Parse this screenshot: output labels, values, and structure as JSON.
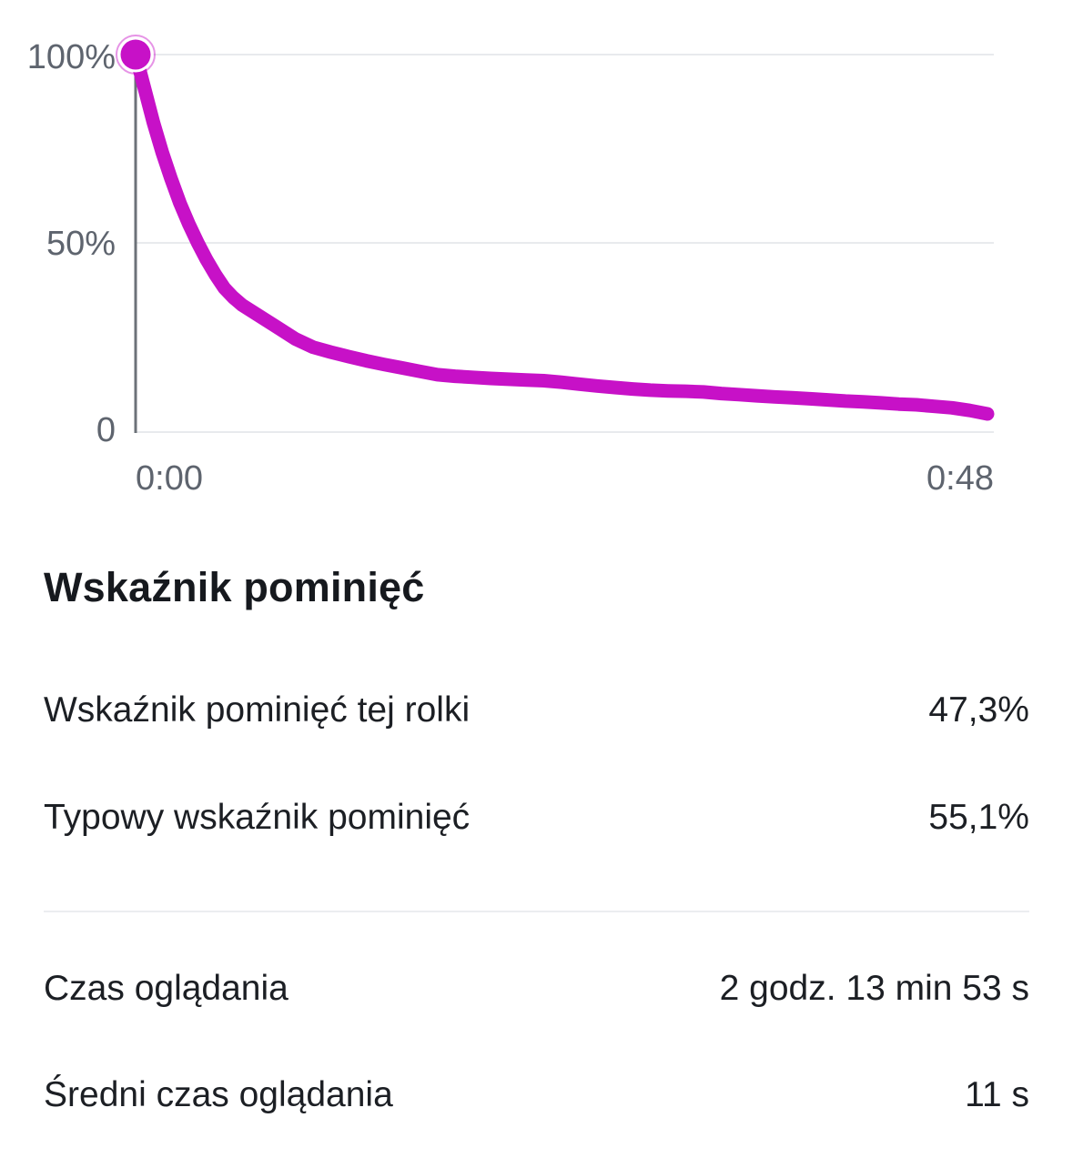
{
  "chart_data": {
    "type": "line",
    "description": "Audience retention curve for a reel: percent of viewers still watching over video time",
    "line_color": "#c711c7",
    "start_marker": {
      "shown": true,
      "at": [
        0,
        100
      ]
    },
    "x_axis": {
      "tick_labels": [
        "0:00",
        "0:48"
      ],
      "range_seconds": [
        0,
        48
      ],
      "gridlines": false
    },
    "y_axis": {
      "tick_labels": [
        "100%",
        "50%",
        "0"
      ],
      "tick_values": [
        100,
        50,
        0
      ],
      "range_percent": [
        0,
        100
      ],
      "gridlines": true
    },
    "points": [
      [
        0,
        100
      ],
      [
        0.5,
        91
      ],
      [
        1,
        82
      ],
      [
        1.5,
        74
      ],
      [
        2,
        67
      ],
      [
        2.5,
        60.5
      ],
      [
        3,
        55
      ],
      [
        3.5,
        50
      ],
      [
        4,
        45.5
      ],
      [
        4.5,
        41.5
      ],
      [
        5,
        38
      ],
      [
        5.5,
        35.5
      ],
      [
        6,
        33.5
      ],
      [
        7,
        30.5
      ],
      [
        8,
        27.5
      ],
      [
        9,
        24.5
      ],
      [
        10,
        22.3
      ],
      [
        11,
        21
      ],
      [
        12,
        19.8
      ],
      [
        13,
        18.7
      ],
      [
        14,
        17.7
      ],
      [
        15,
        16.8
      ],
      [
        16,
        15.9
      ],
      [
        17,
        15.0
      ],
      [
        18,
        14.6
      ],
      [
        19,
        14.3
      ],
      [
        20,
        14.0
      ],
      [
        21,
        13.8
      ],
      [
        22,
        13.6
      ],
      [
        23,
        13.4
      ],
      [
        24,
        13.0
      ],
      [
        25,
        12.5
      ],
      [
        26,
        12.0
      ],
      [
        27,
        11.6
      ],
      [
        28,
        11.2
      ],
      [
        29,
        10.9
      ],
      [
        30,
        10.7
      ],
      [
        31,
        10.6
      ],
      [
        32,
        10.4
      ],
      [
        33,
        10.0
      ],
      [
        34,
        9.7
      ],
      [
        35,
        9.4
      ],
      [
        36,
        9.1
      ],
      [
        37,
        8.9
      ],
      [
        38,
        8.6
      ],
      [
        39,
        8.3
      ],
      [
        40,
        8.0
      ],
      [
        41,
        7.8
      ],
      [
        42,
        7.5
      ],
      [
        43,
        7.2
      ],
      [
        44,
        7.0
      ],
      [
        45,
        6.6
      ],
      [
        46,
        6.2
      ],
      [
        47,
        5.5
      ],
      [
        48,
        4.6
      ]
    ]
  },
  "sections": {
    "skip_rate": {
      "title": "Wskaźnik pominięć",
      "rows": [
        {
          "label": "Wskaźnik pominięć tej rolki",
          "value": "47,3%"
        },
        {
          "label": "Typowy wskaźnik pominięć",
          "value": "55,1%"
        }
      ]
    },
    "watch_time": {
      "rows": [
        {
          "label": "Czas oglądania",
          "value": "2 godz. 13 min 53 s"
        },
        {
          "label": "Średni czas oglądania",
          "value": "11 s"
        }
      ]
    }
  },
  "colors": {
    "accent_magenta": "#c711c7",
    "axis_text_gray": "#5e646e",
    "gridline_gray": "#e8eaed",
    "axis_line_gray": "#6c7278",
    "text_dark": "#1c1f24",
    "divider_gray": "#ecedf0"
  }
}
